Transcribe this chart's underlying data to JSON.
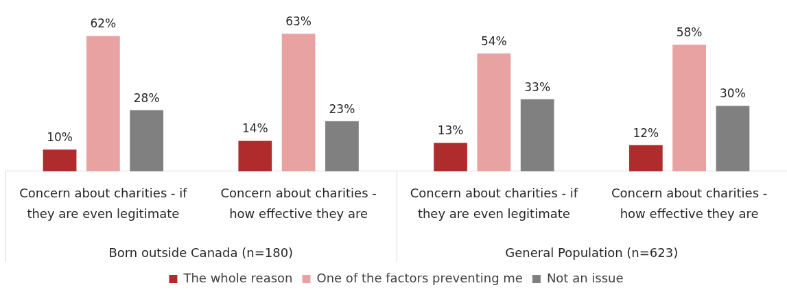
{
  "chart_data": {
    "type": "bar",
    "categories": [
      "Concern about charities - if they are even legitimate",
      "Concern about charities - how effective they are",
      "Concern about charities - if they are even legitimate",
      "Concern about charities - how effective they are"
    ],
    "series": [
      {
        "name": "The whole reason",
        "color": "#b02c2c",
        "values": [
          10,
          14,
          13,
          12
        ],
        "value_labels": [
          "10%",
          "14%",
          "13%",
          "12%"
        ]
      },
      {
        "name": "One of the factors preventing me",
        "color": "#e8a2a2",
        "values": [
          62,
          63,
          54,
          58
        ],
        "value_labels": [
          "62%",
          "63%",
          "54%",
          "58%"
        ]
      },
      {
        "name": "Not an issue",
        "color": "#808080",
        "values": [
          28,
          23,
          33,
          30
        ],
        "value_labels": [
          "28%",
          "23%",
          "33%",
          "30%"
        ]
      }
    ],
    "annotations": [
      "Born outside Canada (n=180)",
      "General Population (n=623)"
    ],
    "tick_labels": "x",
    "legend": "bottom"
  }
}
